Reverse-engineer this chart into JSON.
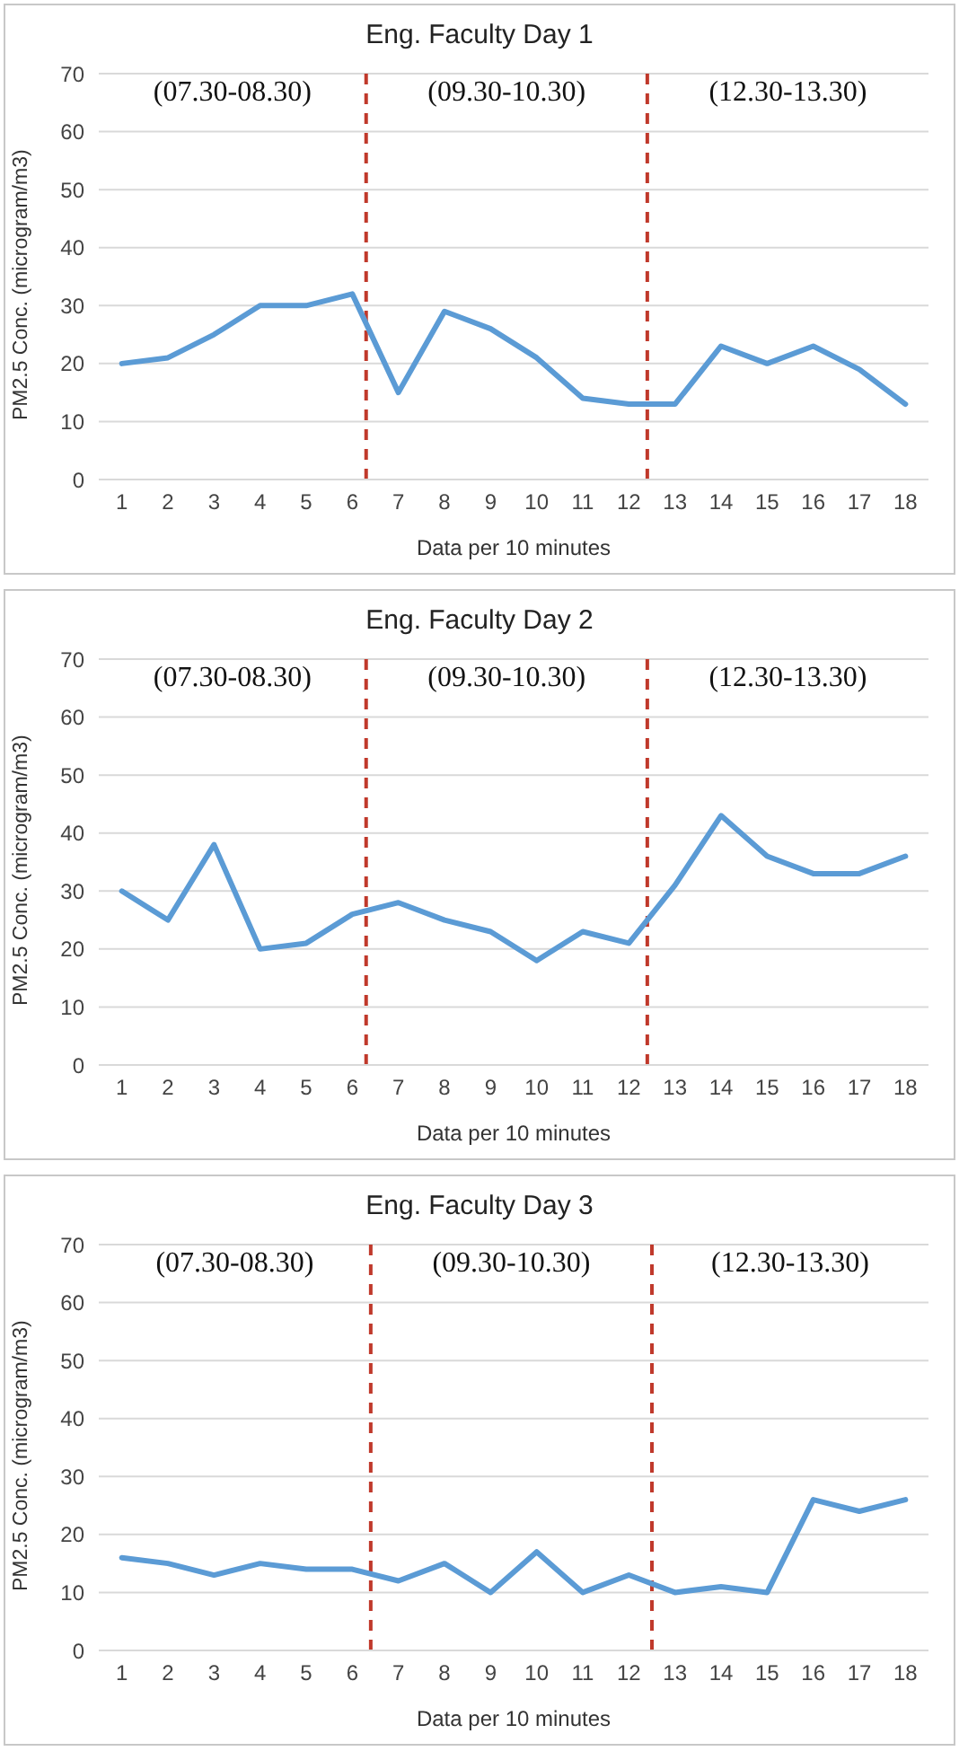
{
  "chart_data": [
    {
      "type": "line",
      "title": "Eng. Faculty Day 1",
      "xlabel": "Data per 10 minutes",
      "ylabel": "PM2.5 Conc. (microgram/m3)",
      "x": [
        1,
        2,
        3,
        4,
        5,
        6,
        7,
        8,
        9,
        10,
        11,
        12,
        13,
        14,
        15,
        16,
        17,
        18
      ],
      "series": [
        {
          "color": "#5b9bd5",
          "values": [
            20,
            21,
            25,
            30,
            30,
            32,
            15,
            29,
            26,
            21,
            14,
            13,
            13,
            23,
            20,
            23,
            19,
            13
          ]
        }
      ],
      "xlim": [
        0.5,
        18.5
      ],
      "xticks": [
        1,
        2,
        3,
        4,
        5,
        6,
        7,
        8,
        9,
        10,
        11,
        12,
        13,
        14,
        15,
        16,
        17,
        18
      ],
      "ylim": [
        0,
        70
      ],
      "yticks": [
        0,
        10,
        20,
        30,
        40,
        50,
        60,
        70
      ],
      "grid": "y",
      "legend": false,
      "marker": "none",
      "line_style": "solid",
      "ref_lines": [
        {
          "axis": "x",
          "value": 6.3,
          "color": "#c0392b",
          "line_style": "dashed"
        },
        {
          "axis": "x",
          "value": 12.4,
          "color": "#c0392b",
          "line_style": "dashed"
        }
      ],
      "annotations": [
        "(07.30-08.30)",
        "(09.30-10.30)",
        "(12.30-13.30)"
      ]
    },
    {
      "type": "line",
      "title": "Eng. Faculty Day 2",
      "xlabel": "Data per 10 minutes",
      "ylabel": "PM2.5 Conc. (microgram/m3)",
      "x": [
        1,
        2,
        3,
        4,
        5,
        6,
        7,
        8,
        9,
        10,
        11,
        12,
        13,
        14,
        15,
        16,
        17,
        18
      ],
      "series": [
        {
          "color": "#5b9bd5",
          "values": [
            30,
            25,
            38,
            20,
            21,
            26,
            28,
            25,
            23,
            18,
            23,
            21,
            31,
            43,
            36,
            33,
            33,
            36
          ]
        }
      ],
      "xlim": [
        0.5,
        18.5
      ],
      "xticks": [
        1,
        2,
        3,
        4,
        5,
        6,
        7,
        8,
        9,
        10,
        11,
        12,
        13,
        14,
        15,
        16,
        17,
        18
      ],
      "ylim": [
        0,
        70
      ],
      "yticks": [
        0,
        10,
        20,
        30,
        40,
        50,
        60,
        70
      ],
      "grid": "y",
      "legend": false,
      "marker": "none",
      "line_style": "solid",
      "ref_lines": [
        {
          "axis": "x",
          "value": 6.3,
          "color": "#c0392b",
          "line_style": "dashed"
        },
        {
          "axis": "x",
          "value": 12.4,
          "color": "#c0392b",
          "line_style": "dashed"
        }
      ],
      "annotations": [
        "(07.30-08.30)",
        "(09.30-10.30)",
        "(12.30-13.30)"
      ]
    },
    {
      "type": "line",
      "title": "Eng. Faculty Day 3",
      "xlabel": "Data per 10 minutes",
      "ylabel": "PM2.5 Conc. (microgram/m3)",
      "x": [
        1,
        2,
        3,
        4,
        5,
        6,
        7,
        8,
        9,
        10,
        11,
        12,
        13,
        14,
        15,
        16,
        17,
        18
      ],
      "series": [
        {
          "color": "#5b9bd5",
          "values": [
            16,
            15,
            13,
            15,
            14,
            14,
            12,
            15,
            10,
            17,
            10,
            13,
            10,
            11,
            10,
            26,
            24,
            26
          ]
        }
      ],
      "xlim": [
        0.5,
        18.5
      ],
      "xticks": [
        1,
        2,
        3,
        4,
        5,
        6,
        7,
        8,
        9,
        10,
        11,
        12,
        13,
        14,
        15,
        16,
        17,
        18
      ],
      "ylim": [
        0,
        70
      ],
      "yticks": [
        0,
        10,
        20,
        30,
        40,
        50,
        60,
        70
      ],
      "grid": "y",
      "legend": false,
      "marker": "none",
      "line_style": "solid",
      "ref_lines": [
        {
          "axis": "x",
          "value": 6.4,
          "color": "#c0392b",
          "line_style": "dashed"
        },
        {
          "axis": "x",
          "value": 12.5,
          "color": "#c0392b",
          "line_style": "dashed"
        }
      ],
      "annotations": [
        "(07.30-08.30)",
        "(09.30-10.30)",
        "(12.30-13.30)"
      ]
    }
  ]
}
